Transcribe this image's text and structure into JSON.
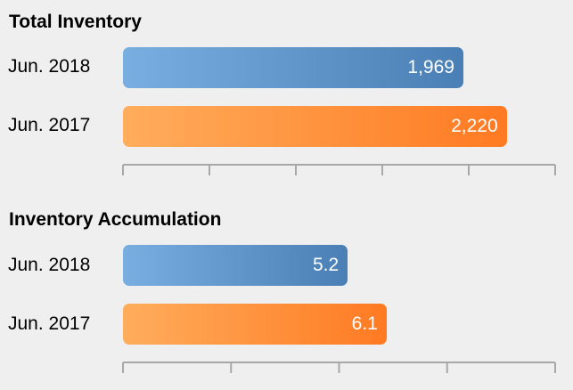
{
  "colors": {
    "jun2018_start": "#78aee0",
    "jun2018_end": "#4a7fb5",
    "jun2017_start": "#ffad5c",
    "jun2017_end": "#ff7a22",
    "axis": "#a8a8a8",
    "background": "#efefef"
  },
  "chart_data": [
    {
      "type": "bar",
      "orientation": "horizontal",
      "title": "Total Inventory",
      "categories": [
        "Jun. 2018",
        "Jun. 2017"
      ],
      "values": [
        1969,
        2220
      ],
      "value_labels": [
        "1,969",
        "2,220"
      ],
      "xlim": [
        0,
        2500
      ],
      "tick_count": 5,
      "grid": false,
      "legend": "none"
    },
    {
      "type": "bar",
      "orientation": "horizontal",
      "title": "Inventory Accumulation",
      "categories": [
        "Jun. 2018",
        "Jun. 2017"
      ],
      "values": [
        5.2,
        6.1
      ],
      "value_labels": [
        "5.2",
        "6.1"
      ],
      "xlim": [
        0,
        10
      ],
      "tick_count": 4,
      "grid": false,
      "legend": "none"
    }
  ]
}
